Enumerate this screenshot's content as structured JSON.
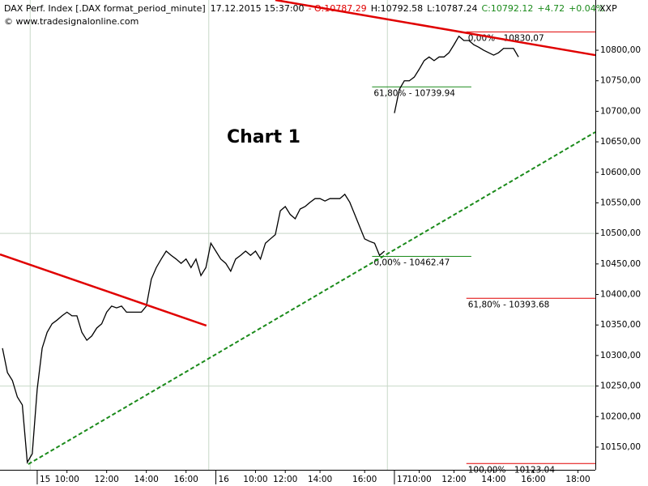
{
  "chart_data": {
    "type": "line",
    "header": {
      "name": "DAX Perf. Index [.DAX  format_period_minute]",
      "timestamp": "17.12.2015 15:37:00",
      "quote": [
        {
          "text": "- O:10787.29",
          "color": "#e00000"
        },
        {
          "text": "H:10792.58",
          "color": "#000000"
        },
        {
          "text": "L:10787.24",
          "color": "#000000"
        },
        {
          "text": "C:10792.12",
          "color": "#1a8a1a"
        },
        {
          "text": "+4.72",
          "color": "#1a8a1a"
        },
        {
          "text": "+0.04%",
          "color": "#1a8a1a"
        }
      ]
    },
    "source": "© www.tradesignalonline.com",
    "symbol": "XXP",
    "annotation": "Chart 1",
    "categories": [
      null,
      null,
      null,
      null,
      null,
      null,
      null,
      "15",
      null,
      null,
      null,
      null,
      null,
      "10:00",
      null,
      null,
      null,
      null,
      null,
      null,
      null,
      "12:00",
      null,
      null,
      null,
      null,
      null,
      null,
      null,
      "14:00",
      null,
      null,
      null,
      null,
      null,
      null,
      null,
      "16:00",
      null,
      null,
      null,
      null,
      null,
      "16",
      null,
      null,
      null,
      null,
      null,
      null,
      null,
      "10:00",
      null,
      null,
      null,
      null,
      null,
      "12:00",
      null,
      null,
      null,
      null,
      null,
      null,
      "14:00",
      null,
      null,
      null,
      null,
      null,
      null,
      null,
      null,
      "16:00",
      null,
      null,
      null,
      null,
      null,
      "17",
      null,
      null,
      null,
      null,
      "10:00",
      null,
      null,
      null,
      null,
      null,
      null,
      "12:00",
      null,
      null,
      null,
      null,
      null,
      null,
      null,
      "14:00",
      null,
      null,
      null,
      null,
      null,
      null,
      null,
      "16:00",
      null,
      null,
      null,
      null,
      null,
      null,
      null,
      null,
      "18:00",
      null,
      null,
      null
    ],
    "day_starts": [
      7,
      43,
      79
    ],
    "series": [
      {
        "color": "#000000",
        "values": [
          10312,
          10272,
          10259,
          10232,
          10219,
          10125,
          10139,
          10245,
          10312,
          10338,
          10352,
          10358,
          10365,
          10371,
          10365,
          10365,
          10338,
          10325,
          10332,
          10345,
          10352,
          10371,
          10381,
          10378,
          10381,
          10371,
          10371,
          10371,
          10371,
          10381,
          10425,
          10444,
          10458,
          10471,
          10464,
          10458,
          10451,
          10458,
          10444,
          10458,
          10431,
          10444,
          10484,
          10471,
          10458,
          10451,
          10438,
          10458,
          10464,
          10471,
          10464,
          10471,
          10458,
          10484,
          10491,
          10498,
          10537,
          10544,
          10531,
          10524,
          10540,
          10544,
          10551,
          10557,
          10557,
          10553,
          10557,
          10557,
          10557,
          10564,
          10551,
          10531,
          10511,
          10491,
          10487,
          10484,
          10464,
          10471,
          null,
          10697,
          10736,
          10750,
          10750,
          10756,
          10769,
          10783,
          10789,
          10783,
          10789,
          10789,
          10796,
          10809,
          10823,
          10816,
          10816,
          10809,
          10805,
          10800,
          10796,
          10792,
          10796,
          10803,
          10803,
          10803,
          10789,
          null,
          null,
          null,
          null,
          null,
          null,
          null,
          null,
          null,
          null,
          null,
          null,
          null,
          null,
          null
        ]
      }
    ],
    "ylim": [
      10112.8,
      10882.3
    ],
    "yticks": [
      {
        "value": 10150,
        "label": "10150,00"
      },
      {
        "value": 10200,
        "label": "10200,00"
      },
      {
        "value": 10250,
        "label": "10250,00"
      },
      {
        "value": 10300,
        "label": "10300,00"
      },
      {
        "value": 10350,
        "label": "10350,00"
      },
      {
        "value": 10400,
        "label": "10400,00"
      },
      {
        "value": 10450,
        "label": "10450,00"
      },
      {
        "value": 10500,
        "label": "10500,00"
      },
      {
        "value": 10550,
        "label": "10550,00"
      },
      {
        "value": 10600,
        "label": "10600,00"
      },
      {
        "value": 10650,
        "label": "10650,00"
      },
      {
        "value": 10700,
        "label": "10700,00"
      },
      {
        "value": 10750,
        "label": "10750,00"
      },
      {
        "value": 10800,
        "label": "10800,00"
      }
    ],
    "grid_values": [
      10250,
      10500
    ],
    "levels": [
      {
        "value": 10830.07,
        "label": "0,00% - 10830,07",
        "color": "#e00000",
        "from": 94,
        "to": 120
      },
      {
        "value": 10739.94,
        "label": "61,80% - 10739.94",
        "color": "#1a8a1a",
        "from": 75,
        "to": 95
      },
      {
        "value": 10462.47,
        "label": "0,00% - 10462.47",
        "color": "#1a8a1a",
        "from": 75,
        "to": 95
      },
      {
        "value": 10393.68,
        "label": "61,80% - 10393.68",
        "color": "#e00000",
        "from": 94,
        "to": 120
      },
      {
        "value": 10123.04,
        "label": "100,00% - 10123.04",
        "color": "#e00000",
        "from": 94,
        "to": 120
      }
    ],
    "trend_lines": [
      {
        "color": "#e00000",
        "dashed": false,
        "from": [
          0,
          10465.7
        ],
        "to": [
          41.6,
          10349
        ]
      },
      {
        "color": "#e00000",
        "dashed": false,
        "from": [
          55.5,
          10882.3
        ],
        "to": [
          120,
          10792
        ]
      },
      {
        "color": "#1a8a1a",
        "dashed": true,
        "from": [
          5.7,
          10122
        ],
        "to": [
          120,
          10666
        ]
      }
    ]
  }
}
